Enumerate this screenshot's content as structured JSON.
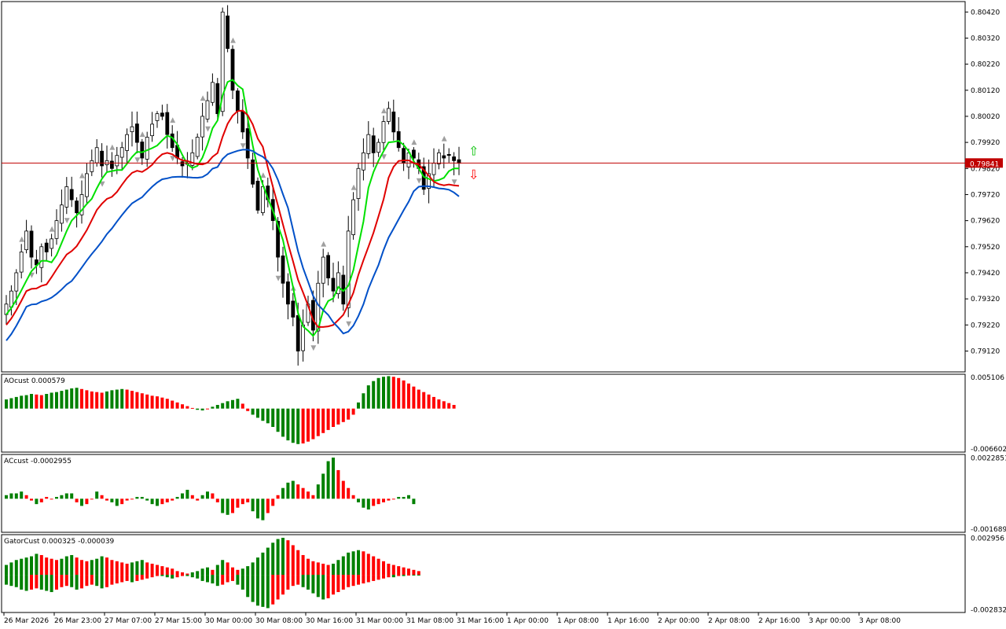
{
  "colors": {
    "background": "#ffffff",
    "frame": "#000000",
    "bull_candle": "#ffffff",
    "bear_candle": "#000000",
    "ma_fast": "#00e000",
    "ma_mid": "#e00000",
    "ma_slow": "#0050c8",
    "hist_up": "#008000",
    "hist_down": "#ff0000",
    "price_line": "#c00000",
    "fractal": "#a0a0a0",
    "signal_up": "#00c000",
    "signal_down": "#ff0000"
  },
  "current_price": "0.79841",
  "chart_data": [
    {
      "type": "candlestick",
      "symbol_panel": "main",
      "ylim": [
        0.7904,
        0.8046
      ],
      "y_ticks": [
        "0.80420",
        "0.80320",
        "0.80220",
        "0.80120",
        "0.80020",
        "0.79920",
        "0.79820",
        "0.79720",
        "0.79620",
        "0.79520",
        "0.79420",
        "0.79320",
        "0.79220",
        "0.79120"
      ],
      "x_ticks": [
        "26 Mar 2026",
        "26 Mar 23:00",
        "27 Mar 07:00",
        "27 Mar 15:00",
        "30 Mar 00:00",
        "30 Mar 08:00",
        "30 Mar 16:00",
        "31 Mar 00:00",
        "31 Mar 08:00",
        "31 Mar 16:00",
        "1 Apr 00:00",
        "1 Apr 08:00",
        "1 Apr 16:00",
        "2 Apr 00:00",
        "2 Apr 08:00",
        "2 Apr 16:00",
        "3 Apr 00:00",
        "3 Apr 08:00"
      ],
      "close_path": [
        0.793,
        0.7935,
        0.7942,
        0.795,
        0.7958,
        0.7948,
        0.7945,
        0.7952,
        0.795,
        0.7955,
        0.7962,
        0.7968,
        0.7975,
        0.797,
        0.7965,
        0.7972,
        0.798,
        0.7985,
        0.799,
        0.7983,
        0.7985,
        0.7982,
        0.7987,
        0.799,
        0.7995,
        0.7998,
        0.7992,
        0.7986,
        0.7994,
        0.7999,
        0.8003,
        0.8002,
        0.7995,
        0.799,
        0.7986,
        0.7983,
        0.7984,
        0.7988,
        0.7994,
        0.8002,
        0.8008,
        0.8015,
        0.8003,
        0.8042,
        0.8028,
        0.8012,
        0.8004,
        0.7996,
        0.7986,
        0.7976,
        0.7966,
        0.7975,
        0.797,
        0.7962,
        0.7948,
        0.7938,
        0.793,
        0.7925,
        0.7912,
        0.7922,
        0.793,
        0.792,
        0.7938,
        0.7948,
        0.794,
        0.7935,
        0.7942,
        0.793,
        0.7958,
        0.797,
        0.7982,
        0.7988,
        0.7995,
        0.7988,
        0.7992,
        0.8,
        0.8005,
        0.7996,
        0.799,
        0.7984,
        0.7988,
        0.7986,
        0.7982,
        0.7974,
        0.798,
        0.7984,
        0.7988,
        0.7986,
        0.7987,
        0.7985,
        0.7984
      ],
      "series": [
        {
          "name": "",
          "role": "fast_ma"
        },
        {
          "name": "",
          "role": "mid_ma"
        },
        {
          "name": "",
          "role": "slow_ma"
        }
      ]
    },
    {
      "type": "bar",
      "panel_label": "AOcust 0.000579",
      "y_ticks": [
        "0.005106",
        "-0.006602"
      ],
      "ylim": [
        -0.0066,
        0.0051
      ],
      "values": [
        0.0015,
        0.0017,
        0.0019,
        0.0021,
        0.0022,
        0.0024,
        0.0023,
        0.0022,
        0.0024,
        0.0026,
        0.0027,
        0.0029,
        0.0031,
        0.0033,
        0.0034,
        0.0032,
        0.003,
        0.0028,
        0.0027,
        0.0026,
        0.0028,
        0.003,
        0.0031,
        0.0032,
        0.0031,
        0.0029,
        0.0027,
        0.0025,
        0.0023,
        0.0021,
        0.002,
        0.0018,
        0.0016,
        0.0013,
        0.001,
        0.0007,
        0.0004,
        0.0001,
        -0.0002,
        -0.0003,
        -0.0001,
        0.0003,
        0.0006,
        0.0009,
        0.0012,
        0.0014,
        0.0016,
        0.0008,
        -0.0004,
        -0.001,
        -0.0015,
        -0.002,
        -0.0024,
        -0.003,
        -0.0038,
        -0.0046,
        -0.0052,
        -0.0056,
        -0.0058,
        -0.0057,
        -0.0054,
        -0.005,
        -0.0045,
        -0.004,
        -0.0035,
        -0.003,
        -0.0026,
        -0.0022,
        -0.0018,
        -0.001,
        0.001,
        0.0025,
        0.0038,
        0.0045,
        0.005,
        0.0052,
        0.0053,
        0.0052,
        0.005,
        0.0046,
        0.0041,
        0.0036,
        0.0031,
        0.0027,
        0.0023,
        0.0019,
        0.0015,
        0.0012,
        0.0009,
        0.0006
      ]
    },
    {
      "type": "bar",
      "panel_label": "ACcust -0.0002955",
      "y_ticks": [
        "0.0022851",
        "-0.0016896"
      ],
      "ylim": [
        -0.0017,
        0.0023
      ],
      "values": [
        0.0002,
        0.0003,
        0.0003,
        0.0004,
        0.0002,
        -0.0001,
        -0.0003,
        -0.0002,
        0.0001,
        0.0,
        0.0001,
        0.0002,
        0.0003,
        0.0003,
        -0.0002,
        -0.0004,
        -0.0003,
        0.0,
        0.0004,
        0.0002,
        -0.0001,
        -0.0002,
        -0.0004,
        -0.0003,
        -0.0001,
        0.0,
        0.0001,
        0.0001,
        -0.0001,
        -0.0003,
        -0.0004,
        -0.0003,
        -0.0002,
        -0.0001,
        0.0001,
        0.0003,
        0.0005,
        0.0002,
        -0.0001,
        0.0002,
        0.0004,
        0.0003,
        -0.0002,
        -0.0008,
        -0.0009,
        -0.0008,
        -0.0005,
        -0.0003,
        -0.0002,
        -0.0007,
        -0.0011,
        -0.0012,
        -0.0008,
        -0.0004,
        0.0002,
        0.0006,
        0.0009,
        0.001,
        0.0008,
        0.0006,
        0.0004,
        0.0002,
        0.0008,
        0.0014,
        0.0021,
        0.0023,
        0.0016,
        0.001,
        0.0006,
        0.0002,
        -0.0002,
        -0.0005,
        -0.0006,
        -0.0004,
        -0.0003,
        -0.0002,
        -0.0001,
        0.0,
        0.0001,
        0.0001,
        0.0002,
        -0.0003
      ]
    },
    {
      "type": "bar",
      "panel_label": "GatorCust 0.000325 -0.000039",
      "y_ticks": [
        "0.002956",
        "-0.002832"
      ],
      "ylim": [
        -0.0028,
        0.003
      ],
      "upper_values": [
        0.0008,
        0.001,
        0.0012,
        0.0013,
        0.0014,
        0.0015,
        0.0017,
        0.0016,
        0.0014,
        0.0013,
        0.0012,
        0.0013,
        0.0015,
        0.0016,
        0.0014,
        0.0012,
        0.0011,
        0.0012,
        0.0013,
        0.0015,
        0.0014,
        0.0012,
        0.0011,
        0.001,
        0.0009,
        0.001,
        0.0011,
        0.0012,
        0.001,
        0.0009,
        0.0008,
        0.0007,
        0.0006,
        0.0005,
        0.0003,
        0.0002,
        0.0001,
        0.0002,
        0.0003,
        0.0005,
        0.0006,
        0.0004,
        0.0008,
        0.0012,
        0.001,
        0.0006,
        0.0004,
        0.0005,
        0.0007,
        0.001,
        0.0014,
        0.0018,
        0.0022,
        0.0026,
        0.0029,
        0.003,
        0.0028,
        0.0024,
        0.002,
        0.0016,
        0.0013,
        0.0011,
        0.001,
        0.0009,
        0.0008,
        0.0009,
        0.0012,
        0.0015,
        0.0018,
        0.0019,
        0.002,
        0.0019,
        0.0017,
        0.0015,
        0.0013,
        0.0011,
        0.0009,
        0.0008,
        0.0007,
        0.0006,
        0.0005,
        0.0004,
        0.0003
      ],
      "lower_values": [
        -0.0008,
        -0.0009,
        -0.001,
        -0.0012,
        -0.0013,
        -0.0012,
        -0.0011,
        -0.0012,
        -0.0013,
        -0.0014,
        -0.0012,
        -0.001,
        -0.0009,
        -0.001,
        -0.0012,
        -0.0011,
        -0.0009,
        -0.0008,
        -0.0009,
        -0.0011,
        -0.001,
        -0.0008,
        -0.0007,
        -0.0006,
        -0.0005,
        -0.0006,
        -0.0005,
        -0.0004,
        -0.0003,
        -0.0002,
        -0.0001,
        -0.0001,
        -0.0002,
        -0.0003,
        -0.0002,
        -0.0001,
        -0.0001,
        -0.0002,
        -0.0003,
        -0.0005,
        -0.0006,
        -0.0007,
        -0.0009,
        -0.0008,
        -0.0006,
        -0.0005,
        -0.0008,
        -0.0012,
        -0.0018,
        -0.0022,
        -0.0025,
        -0.0026,
        -0.0027,
        -0.0024,
        -0.002,
        -0.0016,
        -0.0012,
        -0.0009,
        -0.0008,
        -0.001,
        -0.0012,
        -0.0015,
        -0.0018,
        -0.002,
        -0.0019,
        -0.0016,
        -0.0014,
        -0.0012,
        -0.001,
        -0.0009,
        -0.0008,
        -0.0007,
        -0.0006,
        -0.0005,
        -0.0004,
        -0.0003,
        -0.0002,
        -0.0002,
        -0.0001,
        -0.0001,
        0.0,
        0.0,
        0.0
      ]
    }
  ]
}
